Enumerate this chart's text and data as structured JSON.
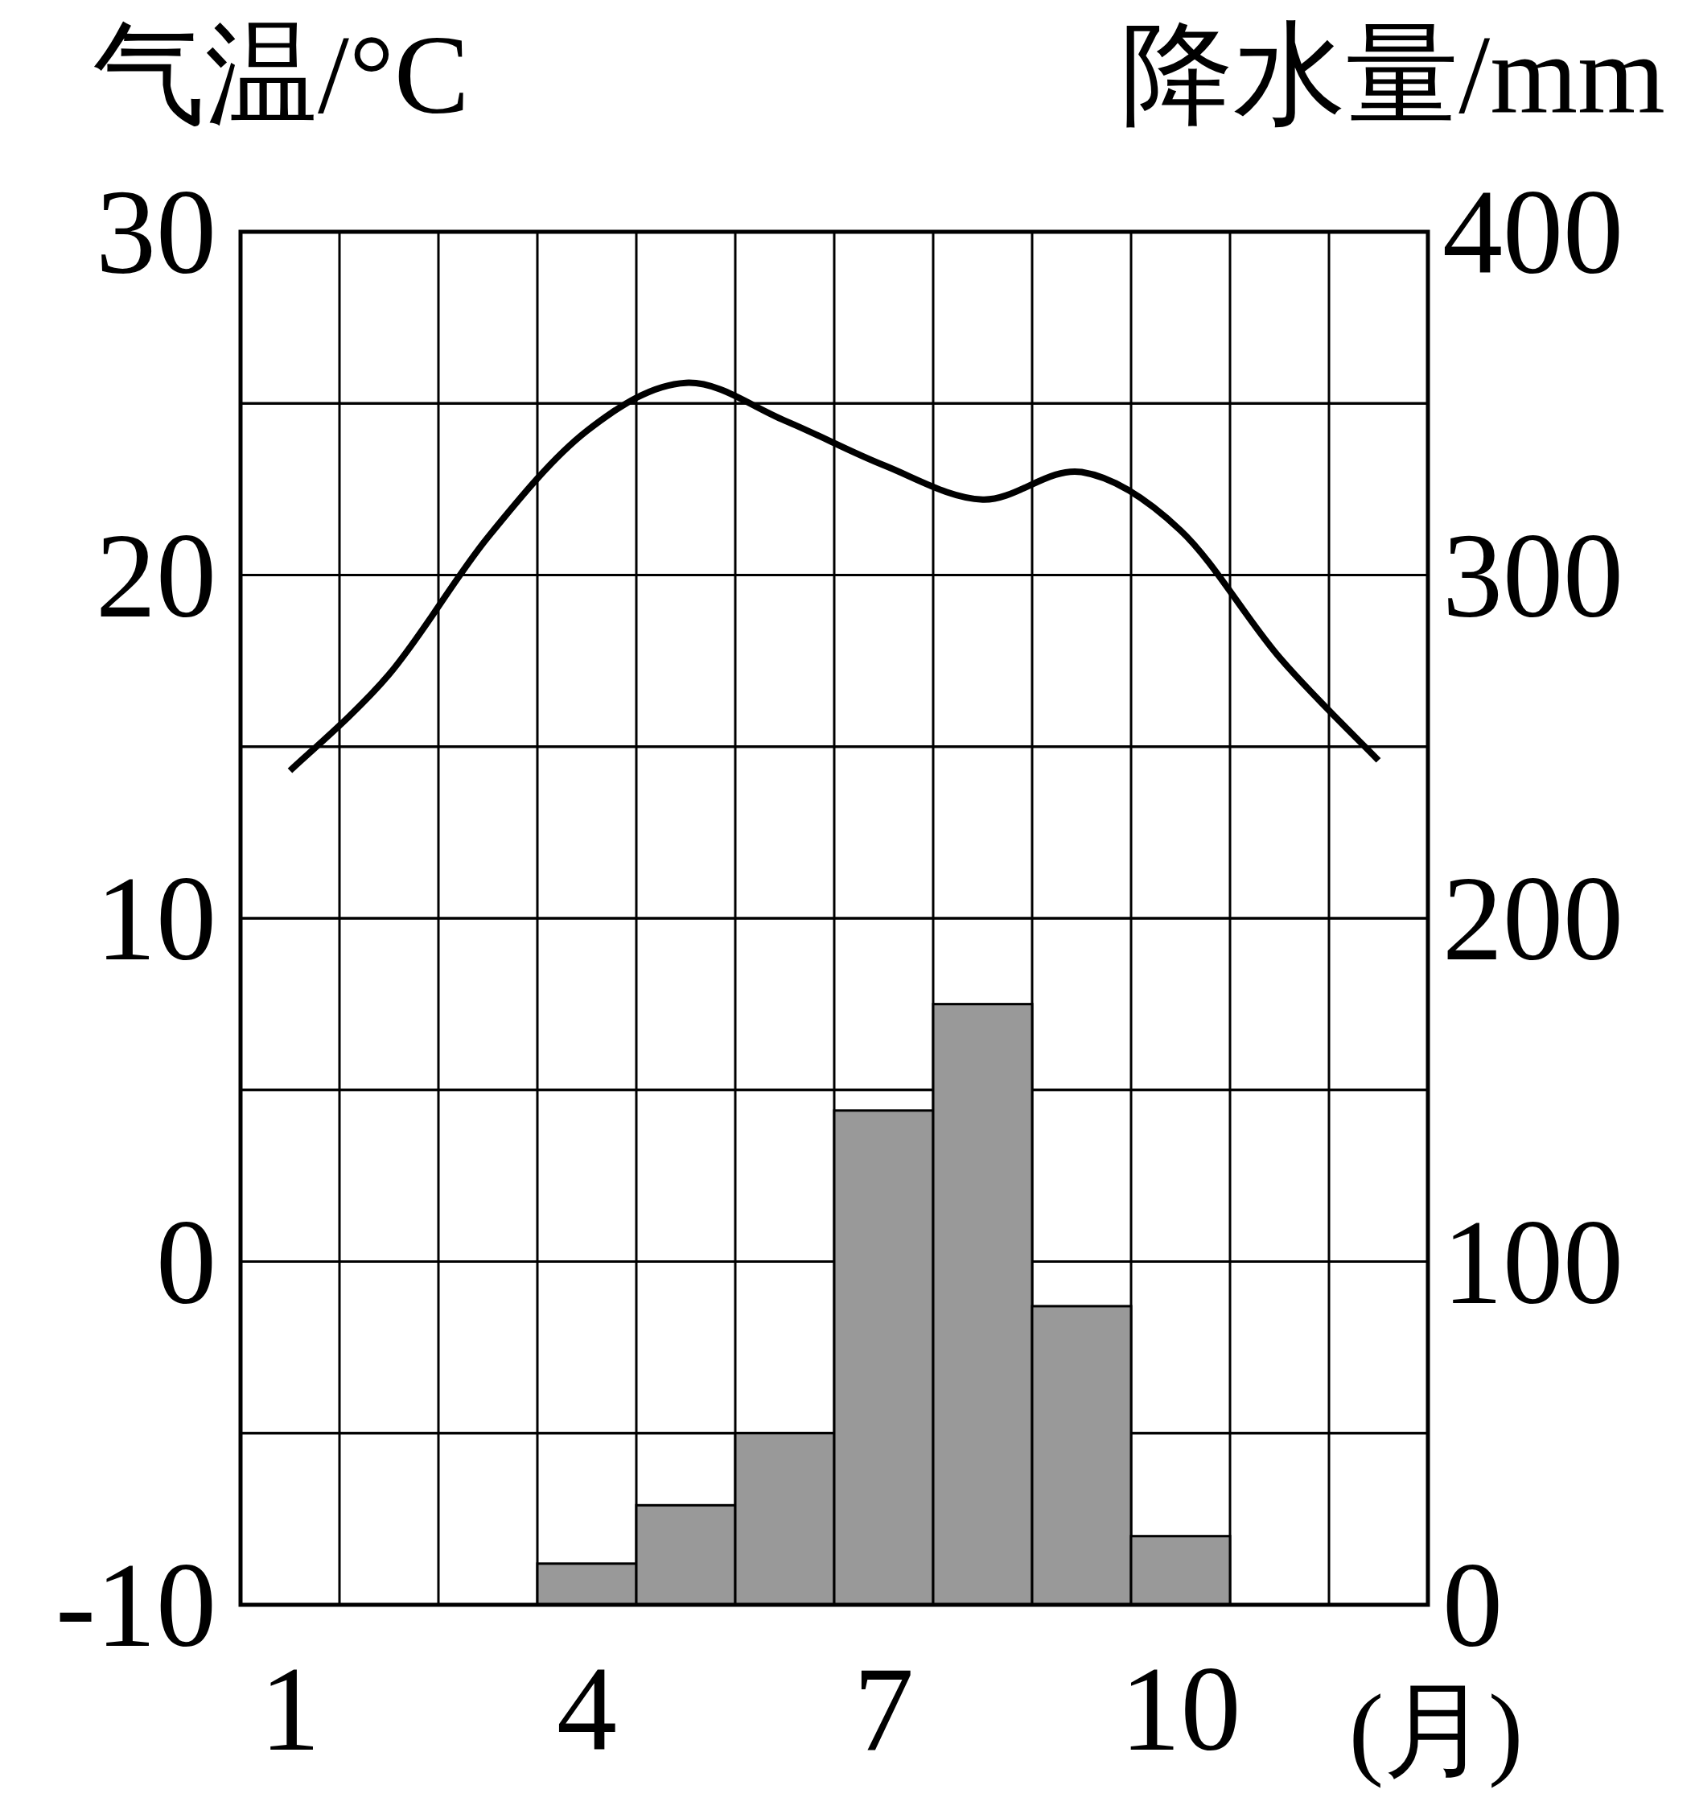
{
  "chart_data": {
    "type": "bar",
    "ylabel": "气温/°C",
    "y2label": "降水量/mm",
    "xlabel": "(月)",
    "categories": [
      "1",
      null,
      null,
      "4",
      null,
      null,
      "7",
      null,
      null,
      "10",
      null,
      null
    ],
    "series": [
      {
        "axis": "y2",
        "color": "#999999",
        "values": [
          0,
          0,
          0,
          12,
          29,
          50,
          144,
          175,
          87,
          20,
          0,
          0
        ]
      },
      {
        "type": "line",
        "color": "#000000",
        "values": [
          14.3,
          17.1,
          21.1,
          24.2,
          25.6,
          24.5,
          23.2,
          22.2,
          23,
          21.3,
          17.6,
          14.6
        ]
      }
    ],
    "ylim": [
      -10,
      30
    ],
    "yticks": [
      -10,
      {
        "value": -5,
        "label": null
      },
      0,
      {
        "value": 5,
        "label": null
      },
      10,
      {
        "value": 15,
        "label": null
      },
      20,
      {
        "value": 25,
        "label": null
      },
      30
    ],
    "y2lim": [
      0,
      400
    ],
    "y2ticks": [
      0,
      {
        "value": 50,
        "label": null
      },
      100,
      {
        "value": 150,
        "label": null
      },
      200,
      {
        "value": 250,
        "label": null
      },
      300,
      {
        "value": 350,
        "label": null
      },
      400
    ],
    "grid": true,
    "marker": "none",
    "line_style": "solid"
  }
}
